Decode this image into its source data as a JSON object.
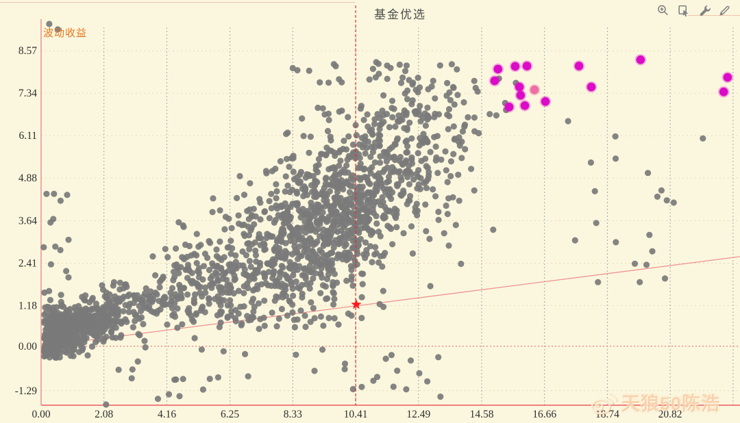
{
  "header": {
    "title": "基金优选",
    "toolbar": [
      {
        "name": "zoom-in-icon"
      },
      {
        "name": "select-arrow-icon"
      },
      {
        "name": "wrench-icon"
      },
      {
        "name": "pencil-icon"
      }
    ]
  },
  "watermark": {
    "logo": "weibo-icon",
    "text": "天狼50陈浩"
  },
  "colors": {
    "background": "#fbf7de",
    "axis_left": "#ef9595",
    "axis_bottom": "#ef8080",
    "grid_vertical": "#8e98a8",
    "grid_horizontal": "#e7d5b8",
    "zero_line": "#e65c5c",
    "trend_line": "#ef9292",
    "crosshair": "#e62a2a",
    "star": "#ff1a1a",
    "point_gray": "#7a7a7a",
    "point_magenta": "#db0bc7",
    "point_pink": "#ee6ea6",
    "title_text": "#4c4c4c",
    "ylabel_text": "#e6771e",
    "tick_text": "#2e2e2e",
    "icon": "#818181"
  },
  "chart_data": {
    "type": "scatter",
    "title": "基金优选",
    "xlabel": "",
    "ylabel": "波动收益",
    "xlim": [
      0,
      23.13
    ],
    "ylim": [
      -1.71,
      9.25
    ],
    "grid": {
      "vertical": "dashed",
      "horizontal": "dotted"
    },
    "x_ticks": [
      {
        "value": 0,
        "label": "0.00"
      },
      {
        "value": 2.08,
        "label": "2.08"
      },
      {
        "value": 4.16,
        "label": "4.16"
      },
      {
        "value": 6.25,
        "label": "6.25"
      },
      {
        "value": 8.33,
        "label": "8.33"
      },
      {
        "value": 10.41,
        "label": "10.41"
      },
      {
        "value": 12.49,
        "label": "12.49"
      },
      {
        "value": 14.58,
        "label": "14.58"
      },
      {
        "value": 16.66,
        "label": "16.66"
      },
      {
        "value": 18.74,
        "label": "18.74"
      },
      {
        "value": 20.82,
        "label": "20.82"
      }
    ],
    "extra_gridline_x": 22.9,
    "y_ticks": [
      {
        "value": 8.57,
        "label": "8.57"
      },
      {
        "value": 7.34,
        "label": "7.34"
      },
      {
        "value": 6.11,
        "label": "6.11"
      },
      {
        "value": 4.88,
        "label": "4.88"
      },
      {
        "value": 3.64,
        "label": "3.64"
      },
      {
        "value": 2.41,
        "label": "2.41"
      },
      {
        "value": 1.18,
        "label": "1.18"
      },
      {
        "value": 0,
        "label": "0.00"
      },
      {
        "value": -1.29,
        "label": "-1.29"
      }
    ],
    "zero_line_y": 0,
    "trend_line": {
      "x1": 0,
      "y1": 0,
      "x2": 23.13,
      "y2": 2.6
    },
    "crosshair": {
      "x": 10.41,
      "star_x": 10.43,
      "star_y": 1.21
    },
    "point_radius": {
      "gray": 4.6,
      "highlight": 6.3
    },
    "highlight_points": [
      {
        "x": 15.12,
        "y": 8.04,
        "variant": "magenta"
      },
      {
        "x": 15.69,
        "y": 8.12,
        "variant": "magenta"
      },
      {
        "x": 16.08,
        "y": 8.13,
        "variant": "magenta"
      },
      {
        "x": 15.01,
        "y": 7.7,
        "variant": "magenta"
      },
      {
        "x": 15.83,
        "y": 7.52,
        "variant": "magenta"
      },
      {
        "x": 16.33,
        "y": 7.44,
        "variant": "pink"
      },
      {
        "x": 15.87,
        "y": 7.28,
        "variant": "magenta"
      },
      {
        "x": 16.69,
        "y": 7.1,
        "variant": "magenta"
      },
      {
        "x": 15.49,
        "y": 6.94,
        "variant": "magenta"
      },
      {
        "x": 16.01,
        "y": 6.98,
        "variant": "magenta"
      },
      {
        "x": 17.8,
        "y": 8.13,
        "variant": "magenta"
      },
      {
        "x": 18.21,
        "y": 7.52,
        "variant": "magenta"
      },
      {
        "x": 19.84,
        "y": 8.31,
        "variant": "magenta"
      },
      {
        "x": 22.72,
        "y": 7.8,
        "variant": "magenta"
      },
      {
        "x": 22.59,
        "y": 7.38,
        "variant": "magenta"
      }
    ],
    "extra_gray_points": [
      [
        0.27,
        9.35
      ],
      [
        0.55,
        9.19
      ],
      [
        2.15,
        -1.69
      ],
      [
        0.18,
        4.42
      ],
      [
        21.9,
        6.03
      ]
    ],
    "gray_cloud": {
      "seed": 20240607,
      "clusters": [
        {
          "n": 640,
          "x": {
            "type": "absgauss",
            "mu": 0.1,
            "sigma": 1.5,
            "min": 0.05,
            "max": 5.0
          },
          "y": {
            "type": "trend",
            "base": 0.2,
            "slope": 0.32,
            "sigma": 0.36,
            "min": -0.35,
            "max": 3.0
          }
        },
        {
          "n": 170,
          "x": {
            "type": "gauss",
            "mu": 5.0,
            "sigma": 1.1,
            "min": 3.2,
            "max": 7.2
          },
          "y": {
            "type": "trend",
            "base": 0.1,
            "slope": 0.36,
            "sigma": 0.75,
            "min": -0.3,
            "max": 4.5
          }
        },
        {
          "n": 960,
          "x": {
            "type": "gauss",
            "mu": 9.7,
            "sigma": 1.75,
            "min": 5.6,
            "max": 14.6
          },
          "y": {
            "type": "trend",
            "base": -0.4,
            "slope": 0.44,
            "sigma": 1.08,
            "min": 0.4,
            "max": 8.2
          }
        },
        {
          "n": 90,
          "x": {
            "type": "gauss",
            "mu": 12.4,
            "sigma": 1.7,
            "min": 9.6,
            "max": 16.4
          },
          "y": {
            "type": "trend",
            "base": 0.2,
            "slope": 0.42,
            "sigma": 1.25,
            "min": 1.5,
            "max": 8.45
          }
        },
        {
          "n": 38,
          "x": {
            "type": "uniform",
            "min": 0.6,
            "max": 13.5
          },
          "y": {
            "type": "uniform",
            "min": -1.62,
            "max": -0.08
          }
        },
        {
          "n": 26,
          "x": {
            "type": "uniform",
            "min": 0.05,
            "max": 0.95
          },
          "y": {
            "type": "uniform",
            "min": 0.3,
            "max": 4.6
          }
        },
        {
          "n": 20,
          "x": {
            "type": "uniform",
            "min": 16.8,
            "max": 21.0
          },
          "y": {
            "type": "uniform",
            "min": 1.8,
            "max": 6.6
          }
        },
        {
          "n": 120,
          "x": {
            "type": "gauss",
            "mu": 7.6,
            "sigma": 1.7,
            "min": 4.6,
            "max": 11.5
          },
          "y": {
            "type": "uniform",
            "min": 0.55,
            "max": 2.4
          }
        },
        {
          "n": 72,
          "x": {
            "type": "gauss",
            "mu": 11.2,
            "sigma": 1.6,
            "min": 8.0,
            "max": 14.6
          },
          "y": {
            "type": "uniform",
            "min": 5.7,
            "max": 8.3
          }
        }
      ]
    }
  }
}
